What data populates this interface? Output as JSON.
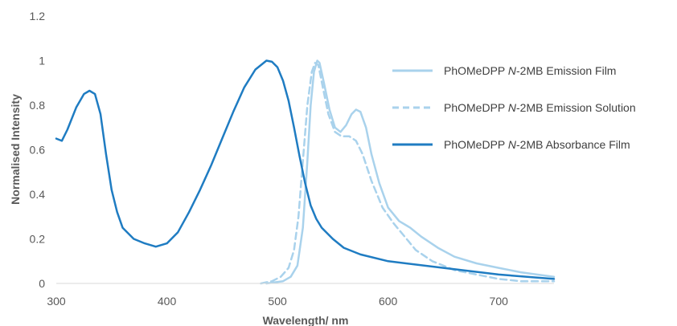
{
  "chart_data": {
    "type": "line",
    "title": "",
    "xlabel": "Wavelength/ nm",
    "ylabel": "Normalised Intensity",
    "xlim": [
      300,
      750
    ],
    "ylim": [
      0,
      1.2
    ],
    "x_ticks": [
      300,
      400,
      500,
      600,
      700
    ],
    "y_ticks": [
      0,
      0.2,
      0.4,
      0.6,
      0.8,
      1,
      1.2
    ],
    "x_tick_labels": [
      "300",
      "400",
      "500",
      "600",
      "700"
    ],
    "y_tick_labels": [
      "0",
      "0.2",
      "0.4",
      "0.6",
      "0.8",
      "1",
      "1.2"
    ],
    "grid": false,
    "legend_position": "right",
    "series": [
      {
        "name_prefix": "PhOMeDPP ",
        "name_italic": "N",
        "name_suffix": "-2MB Emission Film",
        "color": "#a9d2ec",
        "dash": "solid",
        "points": [
          [
            490,
            0.0
          ],
          [
            505,
            0.01
          ],
          [
            512,
            0.03
          ],
          [
            518,
            0.08
          ],
          [
            523,
            0.25
          ],
          [
            527,
            0.55
          ],
          [
            530,
            0.8
          ],
          [
            533,
            0.95
          ],
          [
            536,
            1.0
          ],
          [
            538,
            0.99
          ],
          [
            542,
            0.9
          ],
          [
            547,
            0.78
          ],
          [
            552,
            0.7
          ],
          [
            557,
            0.68
          ],
          [
            562,
            0.71
          ],
          [
            567,
            0.76
          ],
          [
            571,
            0.78
          ],
          [
            575,
            0.77
          ],
          [
            580,
            0.7
          ],
          [
            585,
            0.58
          ],
          [
            592,
            0.45
          ],
          [
            600,
            0.34
          ],
          [
            610,
            0.28
          ],
          [
            620,
            0.25
          ],
          [
            630,
            0.21
          ],
          [
            645,
            0.16
          ],
          [
            660,
            0.12
          ],
          [
            680,
            0.09
          ],
          [
            700,
            0.07
          ],
          [
            720,
            0.05
          ],
          [
            750,
            0.03
          ]
        ]
      },
      {
        "name_prefix": "PhOMeDPP ",
        "name_italic": "N",
        "name_suffix": "-2MB Emission Solution",
        "color": "#a9d2ec",
        "dash": "dashed",
        "points": [
          [
            485,
            0.0
          ],
          [
            495,
            0.01
          ],
          [
            503,
            0.03
          ],
          [
            510,
            0.07
          ],
          [
            515,
            0.15
          ],
          [
            519,
            0.3
          ],
          [
            523,
            0.55
          ],
          [
            527,
            0.8
          ],
          [
            531,
            0.95
          ],
          [
            534,
            0.99
          ],
          [
            537,
            0.98
          ],
          [
            541,
            0.88
          ],
          [
            546,
            0.76
          ],
          [
            552,
            0.68
          ],
          [
            558,
            0.66
          ],
          [
            565,
            0.66
          ],
          [
            571,
            0.64
          ],
          [
            577,
            0.58
          ],
          [
            585,
            0.46
          ],
          [
            595,
            0.34
          ],
          [
            605,
            0.27
          ],
          [
            615,
            0.21
          ],
          [
            625,
            0.15
          ],
          [
            640,
            0.1
          ],
          [
            660,
            0.06
          ],
          [
            680,
            0.04
          ],
          [
            700,
            0.02
          ],
          [
            720,
            0.01
          ],
          [
            750,
            0.01
          ]
        ]
      },
      {
        "name_prefix": "PhOMeDPP ",
        "name_italic": "N",
        "name_suffix": "-2MB Absorbance Film",
        "color": "#1f7cc2",
        "dash": "solid",
        "points": [
          [
            300,
            0.65
          ],
          [
            305,
            0.64
          ],
          [
            310,
            0.69
          ],
          [
            318,
            0.79
          ],
          [
            325,
            0.85
          ],
          [
            330,
            0.865
          ],
          [
            335,
            0.85
          ],
          [
            340,
            0.76
          ],
          [
            345,
            0.58
          ],
          [
            350,
            0.42
          ],
          [
            355,
            0.32
          ],
          [
            360,
            0.25
          ],
          [
            370,
            0.2
          ],
          [
            380,
            0.18
          ],
          [
            390,
            0.165
          ],
          [
            400,
            0.18
          ],
          [
            410,
            0.23
          ],
          [
            420,
            0.32
          ],
          [
            430,
            0.42
          ],
          [
            440,
            0.53
          ],
          [
            450,
            0.65
          ],
          [
            460,
            0.77
          ],
          [
            470,
            0.88
          ],
          [
            480,
            0.96
          ],
          [
            490,
            1.0
          ],
          [
            495,
            0.995
          ],
          [
            500,
            0.97
          ],
          [
            505,
            0.91
          ],
          [
            510,
            0.82
          ],
          [
            515,
            0.7
          ],
          [
            520,
            0.57
          ],
          [
            525,
            0.45
          ],
          [
            530,
            0.35
          ],
          [
            535,
            0.29
          ],
          [
            540,
            0.25
          ],
          [
            550,
            0.2
          ],
          [
            560,
            0.16
          ],
          [
            575,
            0.13
          ],
          [
            600,
            0.1
          ],
          [
            650,
            0.07
          ],
          [
            700,
            0.04
          ],
          [
            750,
            0.02
          ]
        ]
      }
    ]
  }
}
